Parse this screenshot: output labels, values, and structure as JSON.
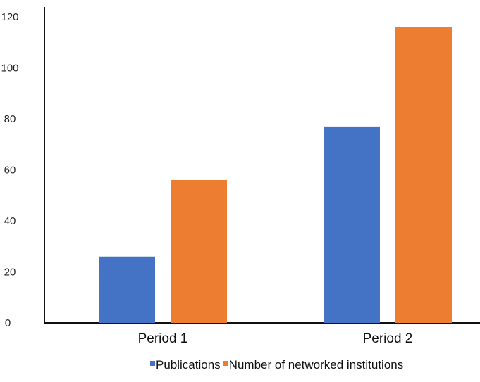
{
  "chart_data": {
    "type": "bar",
    "categories": [
      "Period 1",
      "Period 2"
    ],
    "series": [
      {
        "name": "Publications",
        "values": [
          26,
          77
        ],
        "color": "#4472C4"
      },
      {
        "name": "Number of networked institutions",
        "values": [
          56,
          116
        ],
        "color": "#ED7D31"
      }
    ],
    "ylim": [
      0,
      120
    ],
    "yticks": [
      "0",
      "20",
      "40",
      "60",
      "80",
      "100",
      "120"
    ],
    "grid": false,
    "legend_position": "bottom-right"
  }
}
